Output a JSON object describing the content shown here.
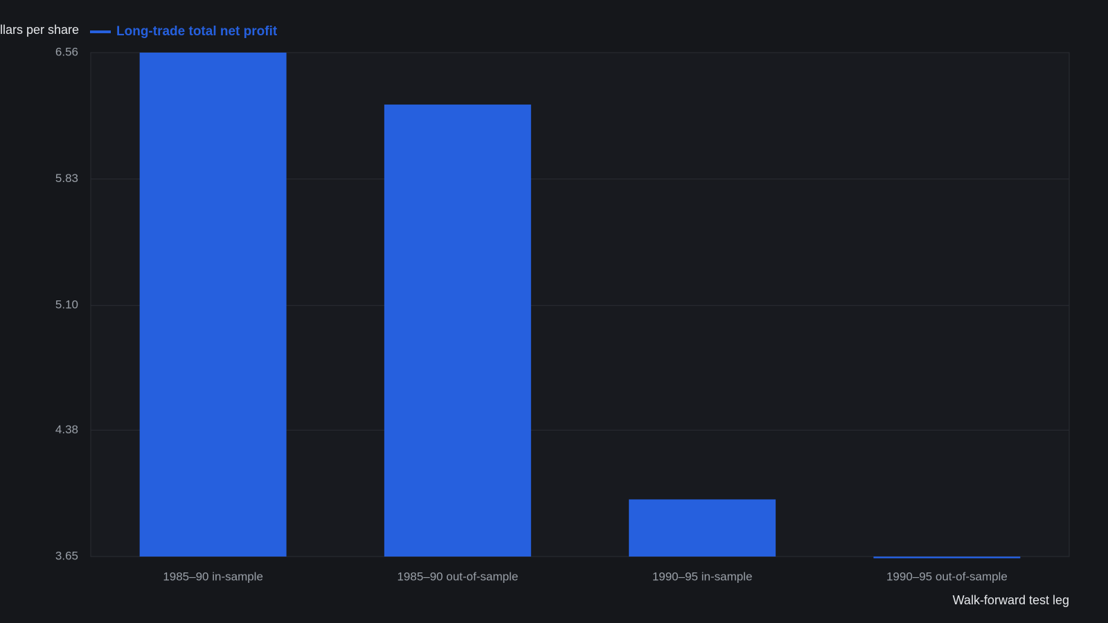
{
  "chart_data": {
    "type": "bar",
    "y_label": "Dollars per share",
    "x_label": "Walk-forward test leg",
    "series": [
      {
        "name": "Long-trade total net profit",
        "color": "#2660de",
        "values": [
          6.56,
          6.26,
          3.98,
          3.64
        ]
      }
    ],
    "categories": [
      "1985–90 in-sample",
      "1985–90 out-of-sample",
      "1990–95 in-sample",
      "1990–95 out-of-sample"
    ],
    "ylim": [
      3.65,
      6.56
    ],
    "yticks": [
      3.65,
      4.38,
      {
        "value": 5.1,
        "label": "5.10"
      },
      5.83,
      6.56
    ],
    "grid": true
  }
}
